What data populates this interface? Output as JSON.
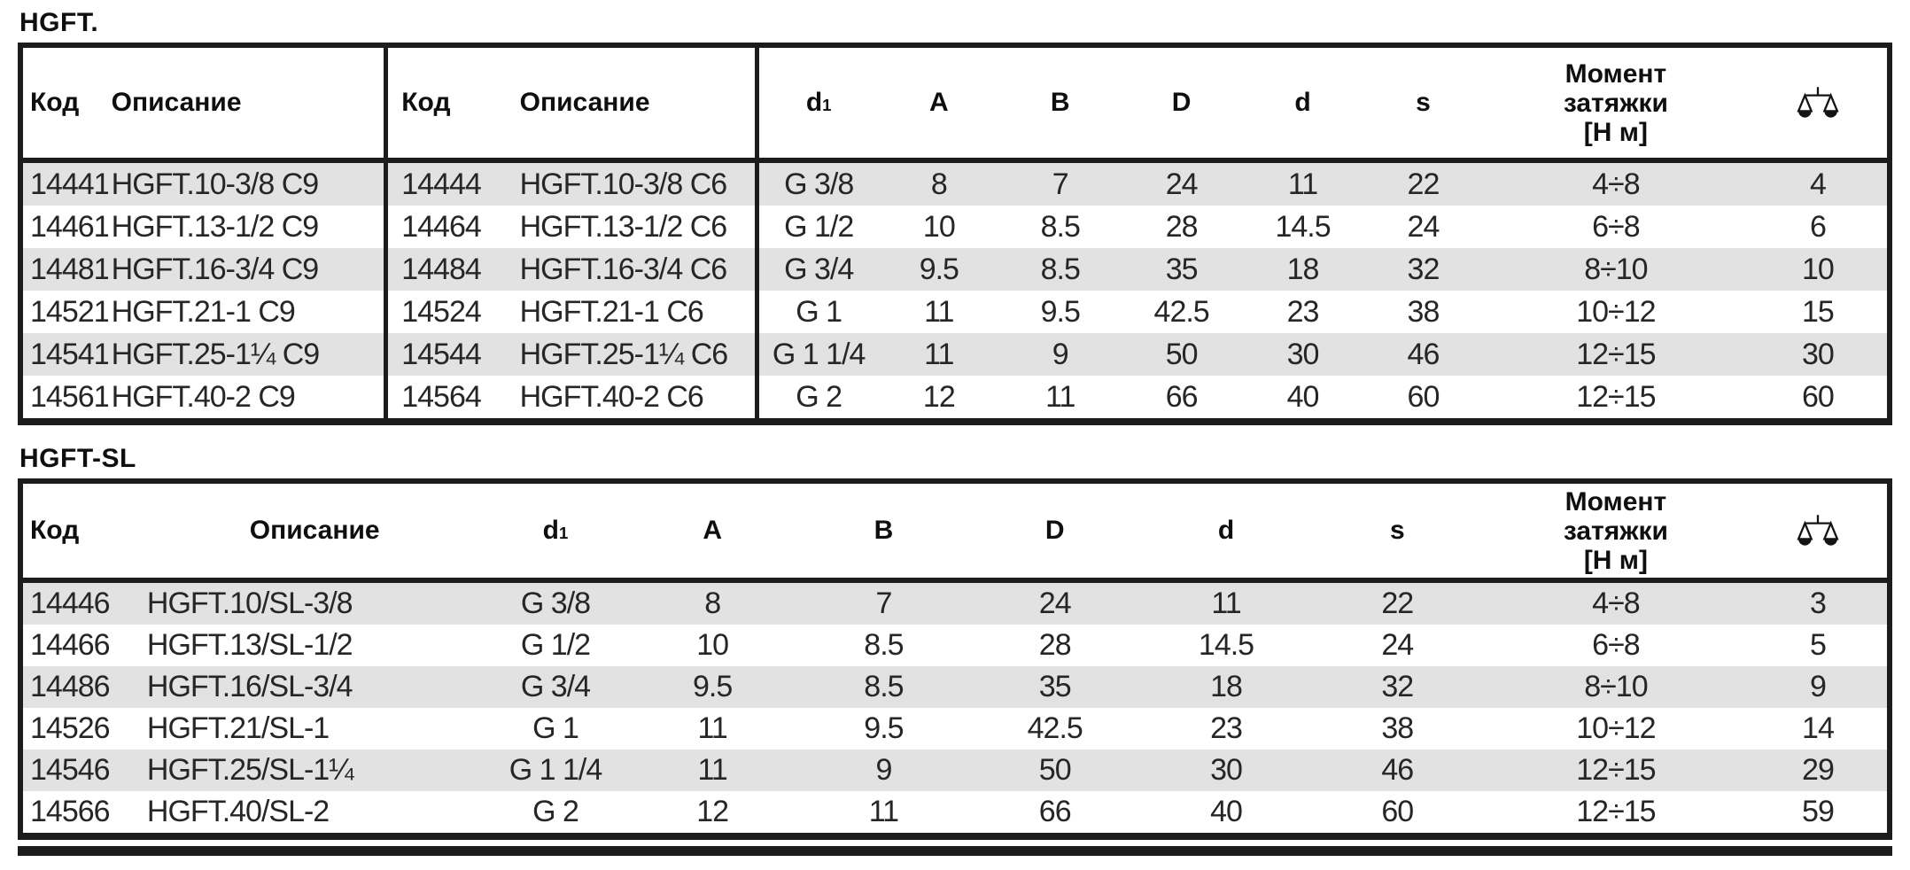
{
  "colors": {
    "row_shade": "#e2e2e3",
    "border": "#1c1c1a",
    "text": "#262626"
  },
  "icons": {
    "weight_column": "balance-scale-icon"
  },
  "table1": {
    "title": "HGFT.",
    "headers": {
      "code": "Код",
      "desc": "Описание",
      "code2": "Код",
      "desc2": "Описание",
      "d1_base": "d",
      "d1_sub": "1",
      "A": "A",
      "B": "B",
      "D": "D",
      "d": "d",
      "s": "s",
      "torque_l1": "Момент",
      "torque_l2": "затяжки",
      "torque_l3": "[Н м]"
    },
    "columns": [
      "code-c9-cell",
      "description-c9-cell",
      "code-c6-cell",
      "description-c6-cell",
      "d1-cell",
      "a-cell",
      "b-cell",
      "d-major-cell",
      "d-minor-cell",
      "s-cell",
      "torque-cell",
      "weight-cell"
    ],
    "rows": [
      [
        "14441",
        "HGFT.10-3/8 C9",
        "14444",
        "HGFT.10-3/8 C6",
        "G 3/8",
        "8",
        "7",
        "24",
        "11",
        "22",
        "4÷8",
        "4"
      ],
      [
        "14461",
        "HGFT.13-1/2 C9",
        "14464",
        "HGFT.13-1/2 C6",
        "G 1/2",
        "10",
        "8.5",
        "28",
        "14.5",
        "24",
        "6÷8",
        "6"
      ],
      [
        "14481",
        "HGFT.16-3/4 C9",
        "14484",
        "HGFT.16-3/4 C6",
        "G 3/4",
        "9.5",
        "8.5",
        "35",
        "18",
        "32",
        "8÷10",
        "10"
      ],
      [
        "14521",
        "HGFT.21-1 C9",
        "14524",
        "HGFT.21-1 C6",
        "G 1",
        "11",
        "9.5",
        "42.5",
        "23",
        "38",
        "10÷12",
        "15"
      ],
      [
        "14541",
        "HGFT.25-1¼ C9",
        "14544",
        "HGFT.25-1¼ C6",
        "G 1 1/4",
        "11",
        "9",
        "50",
        "30",
        "46",
        "12÷15",
        "30"
      ],
      [
        "14561",
        "HGFT.40-2 C9",
        "14564",
        "HGFT.40-2 C6",
        "G 2",
        "12",
        "11",
        "66",
        "40",
        "60",
        "12÷15",
        "60"
      ]
    ]
  },
  "table2": {
    "title": "HGFT-SL",
    "headers": {
      "code": "Код",
      "desc": "Описание",
      "d1_base": "d",
      "d1_sub": "1",
      "A": "A",
      "B": "B",
      "D": "D",
      "d": "d",
      "s": "s",
      "torque_l1": "Момент",
      "torque_l2": "затяжки",
      "torque_l3": "[Н м]"
    },
    "columns": [
      "code-cell",
      "description-cell",
      "d1-cell",
      "a-cell",
      "b-cell",
      "d-major-cell",
      "d-minor-cell",
      "s-cell",
      "torque-cell",
      "weight-cell"
    ],
    "rows": [
      [
        "14446",
        "HGFT.10/SL-3/8",
        "G 3/8",
        "8",
        "7",
        "24",
        "11",
        "22",
        "4÷8",
        "3"
      ],
      [
        "14466",
        "HGFT.13/SL-1/2",
        "G 1/2",
        "10",
        "8.5",
        "28",
        "14.5",
        "24",
        "6÷8",
        "5"
      ],
      [
        "14486",
        "HGFT.16/SL-3/4",
        "G 3/4",
        "9.5",
        "8.5",
        "35",
        "18",
        "32",
        "8÷10",
        "9"
      ],
      [
        "14526",
        "HGFT.21/SL-1",
        "G 1",
        "11",
        "9.5",
        "42.5",
        "23",
        "38",
        "10÷12",
        "14"
      ],
      [
        "14546",
        "HGFT.25/SL-1¼",
        "G 1 1/4",
        "11",
        "9",
        "50",
        "30",
        "46",
        "12÷15",
        "29"
      ],
      [
        "14566",
        "HGFT.40/SL-2",
        "G 2",
        "12",
        "11",
        "66",
        "40",
        "60",
        "12÷15",
        "59"
      ]
    ]
  }
}
